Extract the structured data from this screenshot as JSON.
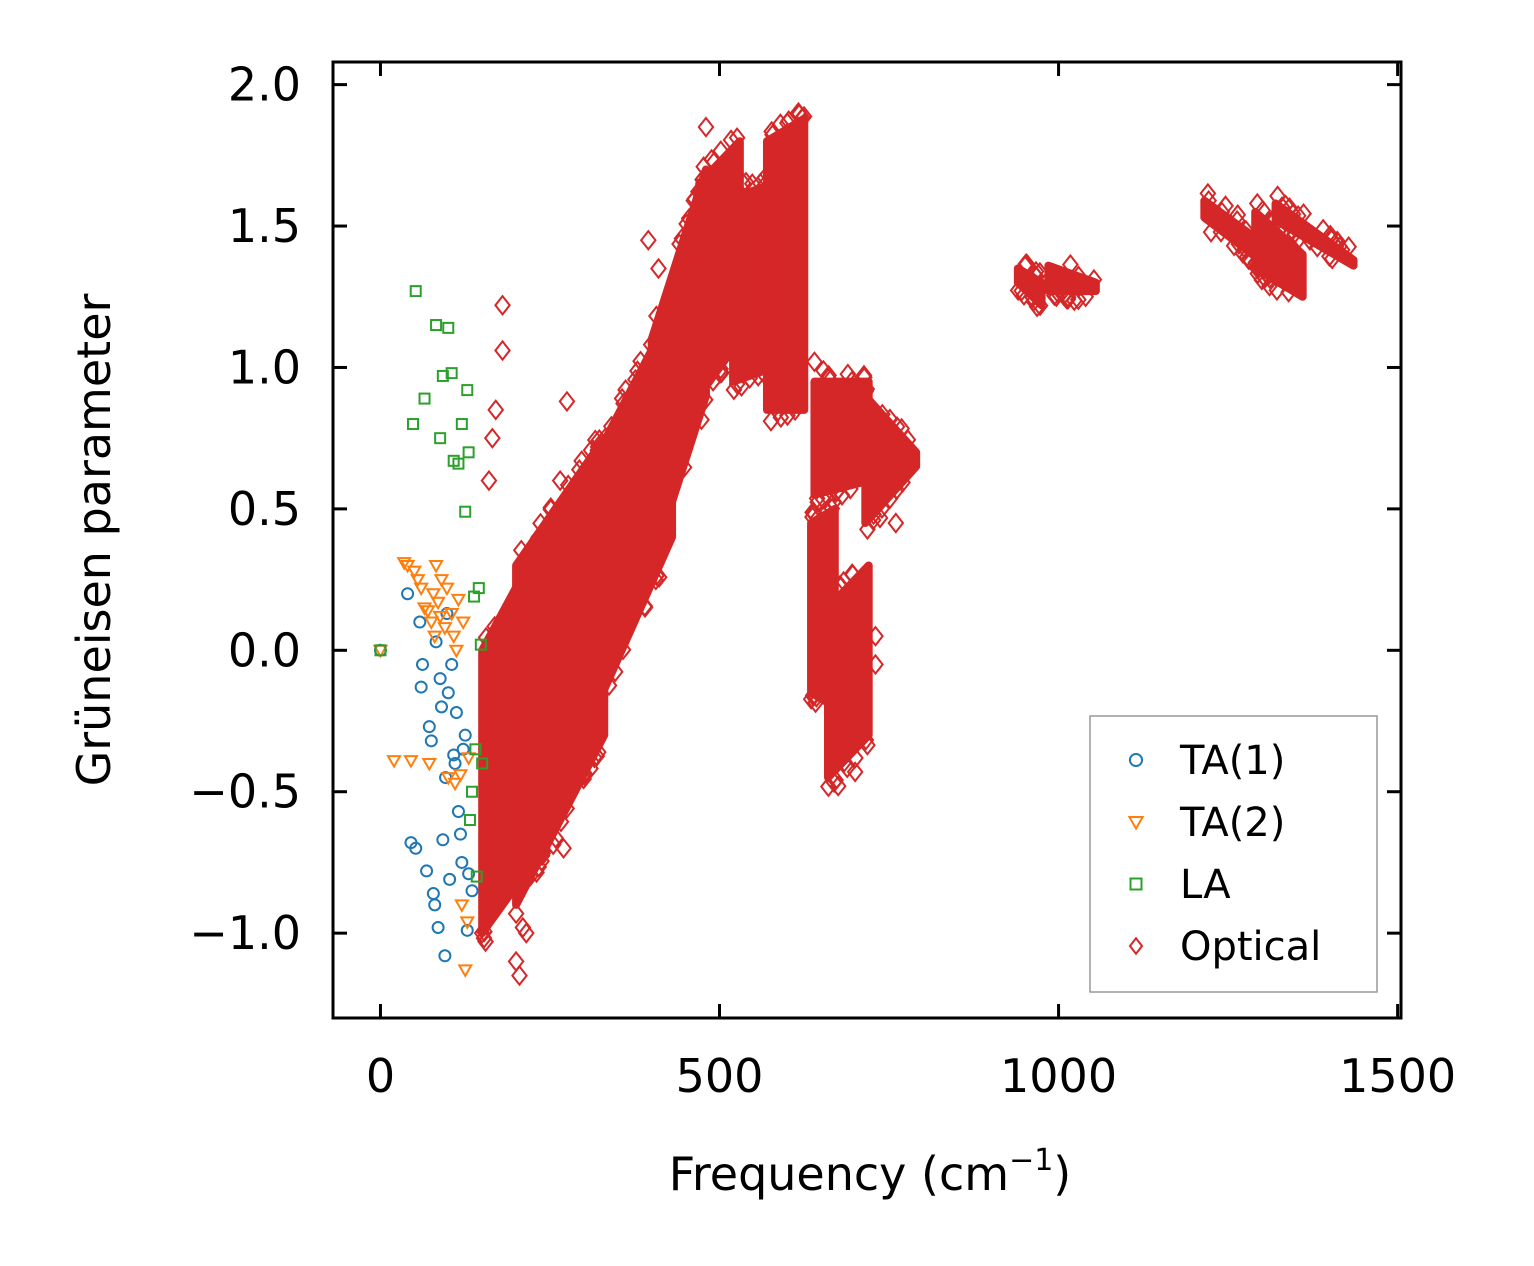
{
  "chart_data": {
    "type": "scatter",
    "title": "",
    "xlabel": "Frequency (cm",
    "xlabel_sup": "−1",
    "xlabel_suffix": ")",
    "ylabel": "Grüneisen parameter",
    "xlim": [
      -70,
      1505
    ],
    "ylim": [
      -1.3,
      2.08
    ],
    "xticks": [
      0,
      500,
      1000,
      1500
    ],
    "xtick_labels": [
      "0",
      "500",
      "1000",
      "1500"
    ],
    "yticks": [
      -1.0,
      -0.5,
      0.0,
      0.5,
      1.0,
      1.5,
      2.0
    ],
    "ytick_labels": [
      "−1.0",
      "−0.5",
      "0.0",
      "0.5",
      "1.0",
      "1.5",
      "2.0"
    ],
    "legend_position": "lower-right",
    "series": [
      {
        "name": "TA(1)",
        "marker": "circle",
        "color": "#1f77b4",
        "x": [
          0,
          40,
          45,
          52,
          58,
          60,
          62,
          68,
          72,
          75,
          78,
          80,
          82,
          85,
          88,
          90,
          92,
          95,
          96,
          98,
          100,
          102,
          105,
          108,
          110,
          112,
          115,
          118,
          120,
          122,
          125,
          128,
          130,
          135
        ],
        "y": [
          0.0,
          0.2,
          -0.68,
          -0.7,
          0.1,
          -0.13,
          -0.05,
          -0.78,
          -0.27,
          -0.32,
          -0.86,
          -0.9,
          0.03,
          -0.98,
          -0.1,
          -0.2,
          -0.67,
          -1.08,
          -0.45,
          0.13,
          -0.15,
          -0.81,
          -0.05,
          -0.37,
          -0.4,
          -0.22,
          -0.57,
          -0.65,
          -0.75,
          -0.35,
          -0.3,
          -0.99,
          -0.79,
          -0.85
        ]
      },
      {
        "name": "TA(2)",
        "marker": "triangle-down",
        "color": "#ff7f0e",
        "x": [
          0,
          20,
          35,
          40,
          45,
          50,
          55,
          60,
          65,
          70,
          72,
          75,
          78,
          80,
          82,
          85,
          88,
          90,
          95,
          98,
          100,
          105,
          108,
          110,
          112,
          115,
          118,
          120,
          122,
          125,
          128,
          130
        ],
        "y": [
          0.0,
          -0.39,
          0.31,
          0.3,
          -0.39,
          0.28,
          0.25,
          0.22,
          0.15,
          0.14,
          -0.4,
          0.1,
          0.2,
          0.05,
          0.3,
          0.17,
          0.12,
          0.25,
          0.08,
          0.22,
          -0.45,
          0.13,
          0.05,
          -0.47,
          0.0,
          0.18,
          -0.44,
          -0.9,
          0.1,
          -1.13,
          -0.96,
          -0.38
        ]
      },
      {
        "name": "LA",
        "marker": "square",
        "color": "#2ca02c",
        "x": [
          0,
          48,
          52,
          65,
          82,
          88,
          92,
          100,
          105,
          108,
          115,
          120,
          125,
          128,
          130,
          132,
          135,
          138,
          140,
          142,
          145,
          148,
          150
        ],
        "y": [
          0.0,
          0.8,
          1.27,
          0.89,
          1.15,
          0.75,
          0.97,
          1.14,
          0.98,
          0.67,
          0.66,
          0.8,
          0.49,
          0.92,
          0.7,
          -0.6,
          -0.5,
          0.19,
          -0.35,
          -0.8,
          0.22,
          0.02,
          -0.4
        ]
      },
      {
        "name": "Optical",
        "marker": "diamond",
        "color": "#d62728",
        "bands": [
          {
            "x0": 150,
            "x1": 240,
            "y_lo_start": -1.0,
            "y_lo_end": -0.7,
            "y_hi_start": 0.0,
            "y_hi_end": 0.4
          },
          {
            "x0": 200,
            "x1": 330,
            "y_lo_start": -0.9,
            "y_lo_end": -0.3,
            "y_hi_start": 0.3,
            "y_hi_end": 0.75
          },
          {
            "x0": 300,
            "x1": 430,
            "y_lo_start": -0.3,
            "y_lo_end": 0.4,
            "y_hi_start": 0.6,
            "y_hi_end": 1.2
          },
          {
            "x0": 400,
            "x1": 480,
            "y_lo_start": 0.3,
            "y_lo_end": 0.9,
            "y_hi_start": 1.1,
            "y_hi_end": 1.7
          },
          {
            "x0": 470,
            "x1": 530,
            "y_lo_start": 0.9,
            "y_lo_end": 1.1,
            "y_hi_start": 1.65,
            "y_hi_end": 1.8
          },
          {
            "x0": 520,
            "x1": 580,
            "y_lo_start": 0.95,
            "y_lo_end": 1.0,
            "y_hi_start": 1.6,
            "y_hi_end": 1.65
          },
          {
            "x0": 570,
            "x1": 625,
            "y_lo_start": 0.85,
            "y_lo_end": 0.85,
            "y_hi_start": 1.8,
            "y_hi_end": 1.88
          },
          {
            "x0": 635,
            "x1": 670,
            "y_lo_start": -0.15,
            "y_lo_end": -0.2,
            "y_hi_start": 0.45,
            "y_hi_end": 0.5
          },
          {
            "x0": 660,
            "x1": 720,
            "y_lo_start": -0.45,
            "y_lo_end": -0.3,
            "y_hi_start": 0.15,
            "y_hi_end": 0.3
          },
          {
            "x0": 640,
            "x1": 720,
            "y_lo_start": 0.55,
            "y_lo_end": 0.6,
            "y_hi_start": 0.95,
            "y_hi_end": 0.95
          },
          {
            "x0": 715,
            "x1": 790,
            "y_lo_start": 0.45,
            "y_lo_end": 0.65,
            "y_hi_start": 0.9,
            "y_hi_end": 0.7
          },
          {
            "x0": 940,
            "x1": 975,
            "y_lo_start": 1.3,
            "y_lo_end": 1.22,
            "y_hi_start": 1.35,
            "y_hi_end": 1.3
          },
          {
            "x0": 985,
            "x1": 1055,
            "y_lo_start": 1.27,
            "y_lo_end": 1.27,
            "y_hi_start": 1.36,
            "y_hi_end": 1.3
          },
          {
            "x0": 1215,
            "x1": 1340,
            "y_lo_start": 1.53,
            "y_lo_end": 1.3,
            "y_hi_start": 1.59,
            "y_hi_end": 1.37
          },
          {
            "x0": 1290,
            "x1": 1360,
            "y_lo_start": 1.35,
            "y_lo_end": 1.25,
            "y_hi_start": 1.55,
            "y_hi_end": 1.4
          },
          {
            "x0": 1320,
            "x1": 1435,
            "y_lo_start": 1.52,
            "y_lo_end": 1.36,
            "y_hi_start": 1.58,
            "y_hi_end": 1.38
          }
        ],
        "outliers_x": [
          180,
          180,
          170,
          165,
          160,
          150,
          155,
          205,
          200,
          210,
          215,
          275,
          265,
          270,
          290,
          380,
          395,
          410,
          420,
          480,
          560,
          600,
          640,
          675,
          700,
          680,
          730,
          730,
          760,
          660
        ],
        "outliers_y": [
          1.22,
          1.06,
          0.85,
          0.75,
          0.6,
          -1.0,
          -1.03,
          -1.15,
          -1.1,
          -0.98,
          -1.0,
          0.88,
          0.6,
          -0.7,
          -0.4,
          0.55,
          1.45,
          1.35,
          1.0,
          1.85,
          1.55,
          1.65,
          1.02,
          -0.48,
          -0.43,
          -0.15,
          0.05,
          -0.05,
          0.45,
          0.0
        ]
      }
    ]
  }
}
